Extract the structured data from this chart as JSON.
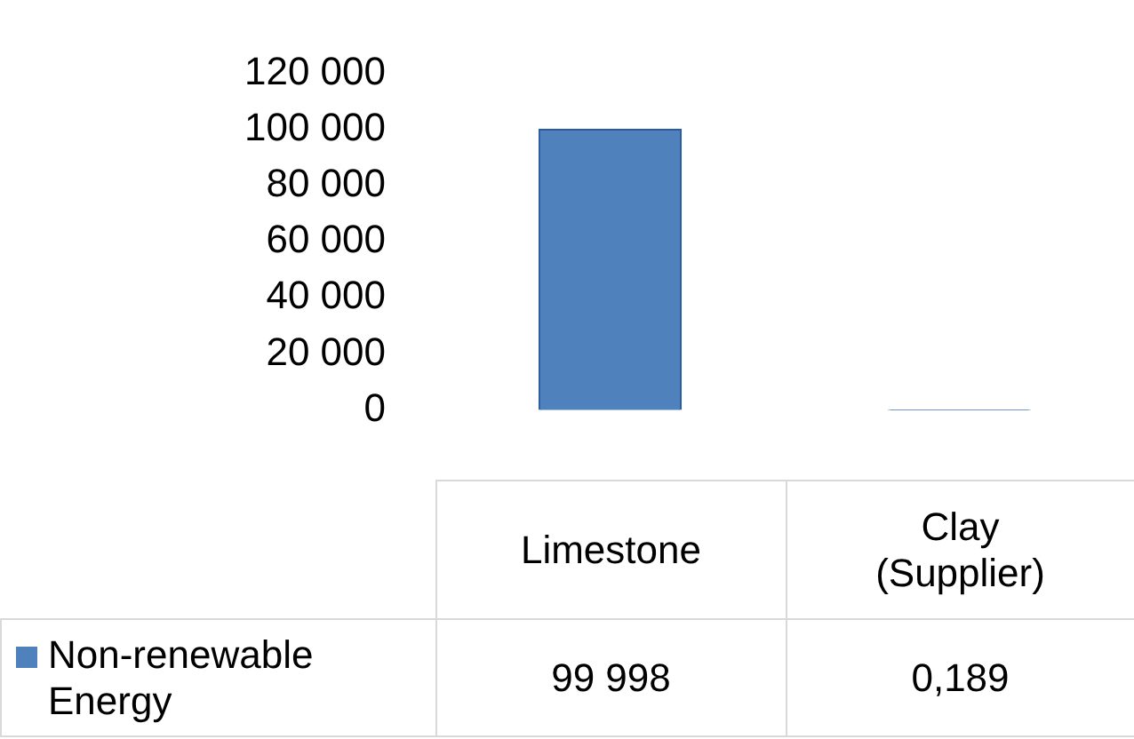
{
  "chart_data": {
    "type": "bar",
    "categories": [
      "Limestone",
      "Clay (Supplier)"
    ],
    "series": [
      {
        "name": "Non-renewable Energy",
        "color": "#4f81bd",
        "values": [
          99998,
          0.189
        ],
        "value_labels": [
          "99 998",
          "0,189"
        ]
      }
    ],
    "ylim": [
      0,
      120000
    ],
    "yticks": [
      {
        "value": 0,
        "label": "0"
      },
      {
        "value": 20000,
        "label": "20 000"
      },
      {
        "value": 40000,
        "label": "40 000"
      },
      {
        "value": 60000,
        "label": "60 000"
      },
      {
        "value": 80000,
        "label": "80 000"
      },
      {
        "value": 100000,
        "label": "100 000"
      },
      {
        "value": 120000,
        "label": "120 000"
      }
    ],
    "legend": "bottom"
  }
}
